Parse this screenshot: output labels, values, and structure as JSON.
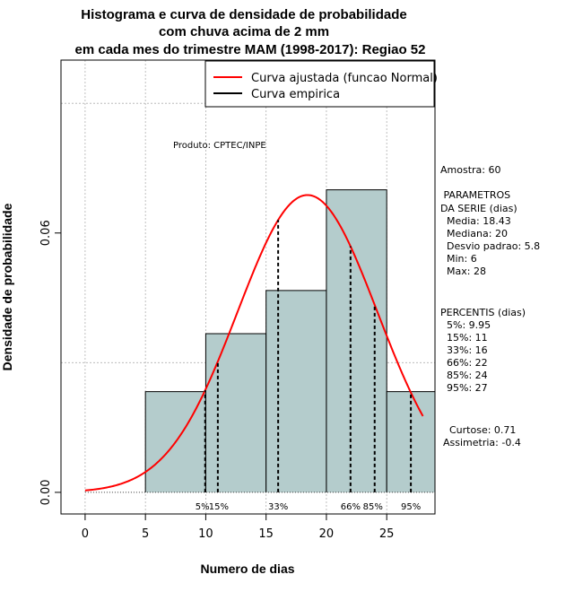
{
  "chart_data": {
    "type": "histogram",
    "title": [
      "Histograma e curva de densidade de probabilidade",
      "com chuva acima de 2 mm",
      "em cada mes do trimestre MAM (1998-2017): Regiao 52"
    ],
    "xlabel": "Numero de dias",
    "ylabel": "Densidade de probabilidade",
    "xlim": [
      -2,
      29
    ],
    "ylim": [
      -0.005,
      0.1
    ],
    "x_ticks": [
      0,
      5,
      10,
      15,
      20,
      25
    ],
    "y_ticks": [
      0.0,
      0.06
    ],
    "y_tick_labels": [
      "0.00",
      "0.06"
    ],
    "grid": true,
    "bins": [
      {
        "start": 5,
        "end": 10,
        "density": 0.0233
      },
      {
        "start": 10,
        "end": 15,
        "density": 0.0367
      },
      {
        "start": 15,
        "end": 20,
        "density": 0.0467
      },
      {
        "start": 20,
        "end": 25,
        "density": 0.07
      },
      {
        "start": 25,
        "end": 29,
        "density": 0.0233
      }
    ],
    "normal_fit": {
      "mean": 18.43,
      "sd": 5.8,
      "x_min": 0,
      "x_max": 28
    },
    "percentiles": [
      {
        "label": "5%",
        "value": 9.95
      },
      {
        "label": "15%",
        "value": 11
      },
      {
        "label": "33%",
        "value": 16
      },
      {
        "label": "66%",
        "value": 22
      },
      {
        "label": "85%",
        "value": 24
      },
      {
        "label": "95%",
        "value": 27
      }
    ],
    "legend": {
      "position": "top-right",
      "entries": [
        {
          "label": "Curva ajustada (funcao Normal)",
          "color": "#ff0000"
        },
        {
          "label": "Curva empirica",
          "color": "#000000"
        }
      ]
    },
    "annotation": "Produto: CPTEC/INPE",
    "colors": {
      "bar_fill": "#b4cccc",
      "bar_stroke": "#000000",
      "curve": "#ff0000",
      "grid": "#b0b0b0"
    }
  },
  "stats": {
    "amostra": "Amostra: 60",
    "param_header": [
      " PARAMETROS",
      "DA SERIE (dias)"
    ],
    "params": [
      "Media: 18.43",
      "Mediana: 20",
      "Desvio padrao: 5.8",
      "Min: 6",
      "Max: 28"
    ],
    "percentis_header": "PERCENTIS (dias)",
    "percentis": [
      "5%: 9.95",
      "15%: 11",
      "33%: 16",
      "66%: 22",
      "85%: 24",
      "95%: 27"
    ],
    "curtose": "Curtose: 0.71",
    "assimetria": "Assimetria: -0.4"
  }
}
